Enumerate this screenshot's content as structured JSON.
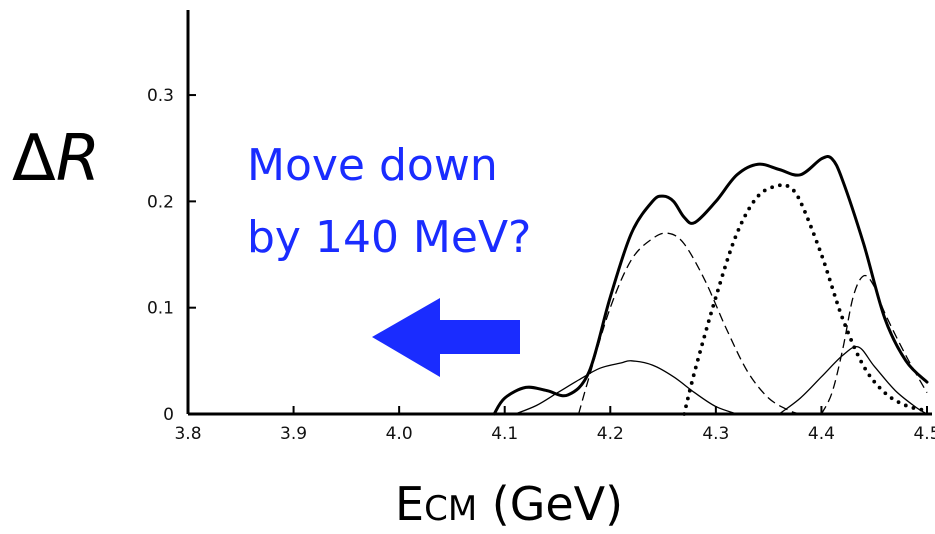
{
  "chart_data": {
    "type": "line",
    "xlabel_main": "E",
    "xlabel_sub": "CM",
    "xlabel_rest": " (GeV)",
    "ylabel_delta": "Δ",
    "ylabel_var": "R",
    "x_ticks": [
      3.8,
      3.9,
      4.0,
      4.1,
      4.2,
      4.3,
      4.4,
      4.5
    ],
    "x_tick_labels": [
      "3.8",
      "3.9",
      "4.0",
      "4.1",
      "4.2",
      "4.3",
      "4.4",
      "4.5"
    ],
    "y_ticks": [
      0,
      0.1,
      0.2,
      0.3
    ],
    "y_tick_labels": [
      "0",
      "0.1",
      "0.2",
      "0.3"
    ],
    "xlim": [
      3.8,
      4.5
    ],
    "ylim": [
      0,
      0.38
    ],
    "grid": false,
    "annotation": {
      "lines": [
        "Move down",
        "by 140 MeV?"
      ],
      "color": "#1a2cff",
      "arrow_color": "#1a2cff",
      "arrow_direction": "left"
    },
    "series": [
      {
        "style": "solid-thick",
        "x": [
          4.09,
          4.1,
          4.12,
          4.14,
          4.16,
          4.18,
          4.2,
          4.22,
          4.24,
          4.25,
          4.26,
          4.27,
          4.28,
          4.3,
          4.32,
          4.34,
          4.36,
          4.38,
          4.4,
          4.41,
          4.42,
          4.44,
          4.46,
          4.48,
          4.5
        ],
        "y": [
          0.0,
          0.015,
          0.025,
          0.022,
          0.018,
          0.04,
          0.11,
          0.17,
          0.2,
          0.205,
          0.2,
          0.185,
          0.18,
          0.2,
          0.225,
          0.235,
          0.23,
          0.225,
          0.24,
          0.24,
          0.22,
          0.16,
          0.09,
          0.05,
          0.03
        ]
      },
      {
        "style": "dashed",
        "x": [
          4.17,
          4.18,
          4.2,
          4.22,
          4.24,
          4.255,
          4.27,
          4.29,
          4.31,
          4.33,
          4.35,
          4.37,
          4.38
        ],
        "y": [
          0.0,
          0.035,
          0.1,
          0.145,
          0.165,
          0.17,
          0.16,
          0.125,
          0.08,
          0.04,
          0.015,
          0.003,
          0.0
        ]
      },
      {
        "style": "thin",
        "x": [
          4.11,
          4.13,
          4.15,
          4.17,
          4.19,
          4.21,
          4.22,
          4.24,
          4.26,
          4.28,
          4.3,
          4.32
        ],
        "y": [
          0.0,
          0.008,
          0.02,
          0.032,
          0.043,
          0.048,
          0.05,
          0.046,
          0.035,
          0.02,
          0.007,
          0.0
        ]
      },
      {
        "style": "dotted",
        "x": [
          4.27,
          4.28,
          4.3,
          4.32,
          4.34,
          4.36,
          4.37,
          4.38,
          4.4,
          4.42,
          4.44,
          4.46,
          4.48,
          4.5
        ],
        "y": [
          0.0,
          0.04,
          0.11,
          0.17,
          0.205,
          0.215,
          0.213,
          0.2,
          0.15,
          0.09,
          0.045,
          0.02,
          0.008,
          0.003
        ]
      },
      {
        "style": "dashed",
        "x": [
          4.4,
          4.41,
          4.42,
          4.43,
          4.44,
          4.45,
          4.46,
          4.48,
          4.5
        ],
        "y": [
          0.0,
          0.02,
          0.06,
          0.11,
          0.13,
          0.12,
          0.095,
          0.055,
          0.02
        ]
      },
      {
        "style": "thin",
        "x": [
          4.36,
          4.38,
          4.4,
          4.42,
          4.435,
          4.45,
          4.47,
          4.49,
          4.5
        ],
        "y": [
          0.0,
          0.015,
          0.035,
          0.055,
          0.063,
          0.045,
          0.022,
          0.006,
          0.0
        ]
      }
    ]
  }
}
